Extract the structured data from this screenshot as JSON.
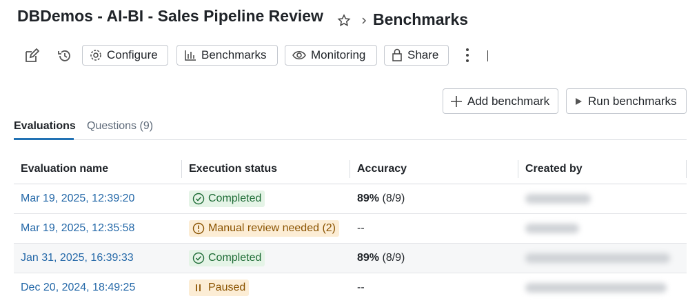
{
  "header": {
    "title": "DBDemos - AI-BI - Sales Pipeline Review",
    "breadcrumb": "Benchmarks"
  },
  "toolbar": {
    "buttons": [
      "Configure",
      "Benchmarks",
      "Monitoring",
      "Share"
    ]
  },
  "actions": {
    "add": "Add benchmark",
    "run": "Run benchmarks"
  },
  "tabs": [
    "Evaluations",
    "Questions (9)"
  ],
  "table": {
    "columns": [
      "Evaluation name",
      "Execution status",
      "Accuracy",
      "Created by"
    ],
    "rows": [
      {
        "name": "Mar 19, 2025, 12:39:20",
        "status": "Completed",
        "accuracy": "89%",
        "detail": "(8/9)"
      },
      {
        "name": "Mar 19, 2025, 12:35:58",
        "status": "Manual review needed (2)",
        "accuracy": "--"
      },
      {
        "name": "Jan 31, 2025, 16:39:33",
        "status": "Completed",
        "accuracy": "89%",
        "detail": "(8/9)"
      },
      {
        "name": "Dec 20, 2024, 18:49:25",
        "status": "Paused",
        "accuracy": "--"
      }
    ]
  }
}
